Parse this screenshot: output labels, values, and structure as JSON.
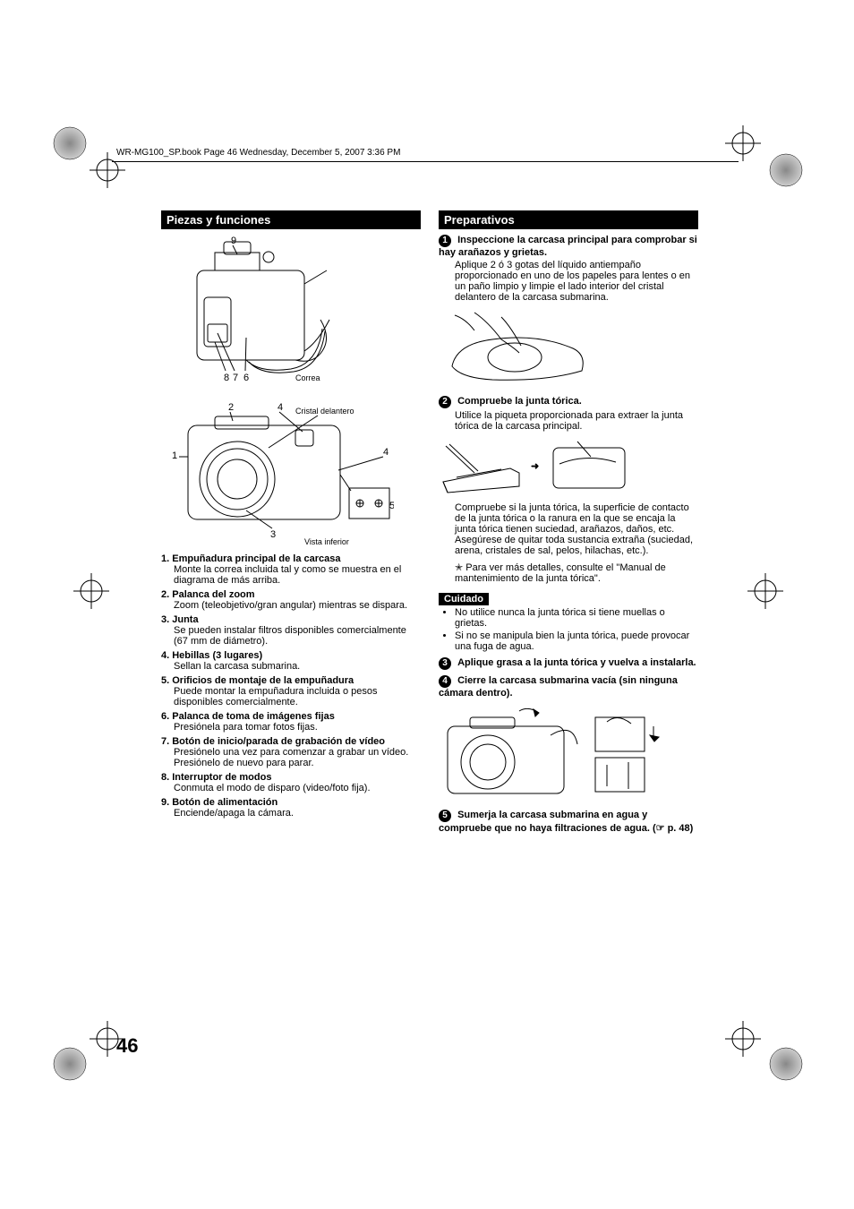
{
  "header": {
    "running": "WR-MG100_SP.book  Page 46  Wednesday, December 5, 2007  3:36 PM"
  },
  "page_number": "46",
  "left": {
    "section_title": "Piezas y funciones",
    "fig1": {
      "callouts": {
        "n9": "9",
        "n8": "8",
        "n7": "7",
        "n6": "6"
      },
      "strap_label": "Correa"
    },
    "fig2": {
      "callouts": {
        "n1": "1",
        "n2": "2",
        "n3": "3",
        "n4a": "4",
        "n4b": "4",
        "n5": "5"
      },
      "front_glass_label": "Cristal delantero",
      "bottom_view_label": "Vista inferior"
    },
    "items": [
      {
        "num": "1.",
        "title": "Empuñadura principal de la carcasa",
        "body": "Monte la correa incluida tal y como se muestra en el diagrama de más arriba."
      },
      {
        "num": "2.",
        "title": "Palanca del zoom",
        "body": "Zoom (teleobjetivo/gran angular) mientras se dispara."
      },
      {
        "num": "3.",
        "title": "Junta",
        "body": "Se pueden instalar filtros disponibles comercialmente (67 mm de diámetro)."
      },
      {
        "num": "4.",
        "title": "Hebillas (3 lugares)",
        "body": "Sellan la carcasa submarina."
      },
      {
        "num": "5.",
        "title": "Orificios de montaje de la empuñadura",
        "body": "Puede montar la empuñadura incluida o pesos disponibles comercialmente."
      },
      {
        "num": "6.",
        "title": "Palanca de toma de imágenes fijas",
        "body": "Presiónela para tomar fotos fijas."
      },
      {
        "num": "7.",
        "title": "Botón de inicio/parada de grabación de vídeo",
        "body": "Presiónelo una vez para comenzar a grabar un vídeo.\nPresiónelo de nuevo para parar."
      },
      {
        "num": "8.",
        "title": "Interruptor de modos",
        "body": "Conmuta el modo de disparo (video/foto fija)."
      },
      {
        "num": "9.",
        "title": "Botón de alimentación",
        "body": "Enciende/apaga la cámara."
      }
    ]
  },
  "right": {
    "section_title": "Preparativos",
    "steps": [
      {
        "n": "1",
        "title": "Inspeccione la carcasa principal para comprobar si hay arañazos y grietas.",
        "body": "Aplique 2 ó 3 gotas del líquido antiempaño proporcionado en uno de los papeles para lentes o en un paño limpio y limpie el lado interior del cristal delantero de la carcasa submarina."
      },
      {
        "n": "2",
        "title": "Compruebe la junta tórica.",
        "body": "Utilice la piqueta proporcionada para extraer la junta tórica de la carcasa principal.",
        "after": "Compruebe si la junta tórica, la superficie de contacto de la junta tórica o la ranura en la que se encaja la junta tórica tienen suciedad, arañazos, daños, etc.\nAsegúrese de quitar toda sustancia extraña (suciedad, arena, cristales de sal, pelos, hilachas, etc.).",
        "star": "Para ver más detalles, consulte el \"Manual de mantenimiento de la junta tórica\"."
      }
    ],
    "caution_label": "Cuidado",
    "caution_bullets": [
      "No utilice nunca la junta tórica si tiene muellas o grietas.",
      "Si no se manipula bien la junta tórica, puede provocar una fuga de agua."
    ],
    "steps2": [
      {
        "n": "3",
        "title": "Aplique grasa a la junta tórica y vuelva a instalarla."
      },
      {
        "n": "4",
        "title": "Cierre la carcasa submarina vacía (sin ninguna cámara dentro)."
      },
      {
        "n": "5",
        "title": "Sumerja la carcasa submarina en agua y compruebe que no haya filtraciones de agua. (☞ p. 48)"
      }
    ]
  },
  "colors": {
    "text": "#000000",
    "bg": "#ffffff",
    "header_bg": "#000000",
    "header_fg": "#ffffff"
  }
}
